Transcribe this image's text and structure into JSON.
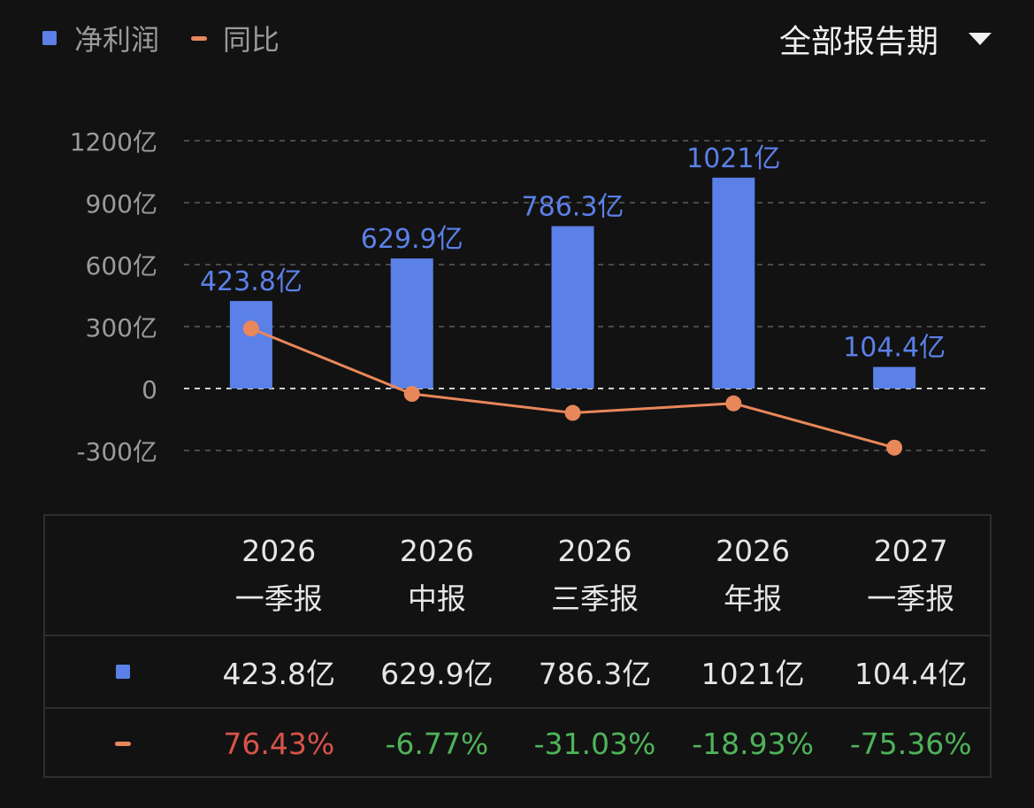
{
  "legend": {
    "bar_label": "净利润",
    "line_label": "同比"
  },
  "period_selector": {
    "label": "全部报告期"
  },
  "colors": {
    "bar": "#5b80e8",
    "line": "#e8875a",
    "positive": "#d9534a",
    "negative": "#4fb35a"
  },
  "chart_data": {
    "type": "bar",
    "categories": [
      "2026 一季报",
      "2026 中报",
      "2026 三季报",
      "2026 年报",
      "2027 一季报"
    ],
    "category_lines": [
      [
        "2026",
        "一季报"
      ],
      [
        "2026",
        "中报"
      ],
      [
        "2026",
        "三季报"
      ],
      [
        "2026",
        "年报"
      ],
      [
        "2027",
        "一季报"
      ]
    ],
    "series": [
      {
        "name": "净利润",
        "type": "bar",
        "values": [
          423.8,
          629.9,
          786.3,
          1021,
          104.4
        ],
        "labels": [
          "423.8亿",
          "629.9亿",
          "786.3亿",
          "1021亿",
          "104.4亿"
        ]
      },
      {
        "name": "同比",
        "type": "line",
        "values": [
          76.43,
          -6.77,
          -31.03,
          -18.93,
          -75.36
        ],
        "labels": [
          "76.43%",
          "-6.77%",
          "-31.03%",
          "-18.93%",
          "-75.36%"
        ]
      }
    ],
    "y_ticks": [
      1200,
      900,
      600,
      300,
      0,
      -300
    ],
    "y_tick_labels": [
      "1200亿",
      "900亿",
      "600亿",
      "300亿",
      "0",
      "-300亿"
    ],
    "ylim": [
      -300,
      1200
    ],
    "grid": true
  }
}
